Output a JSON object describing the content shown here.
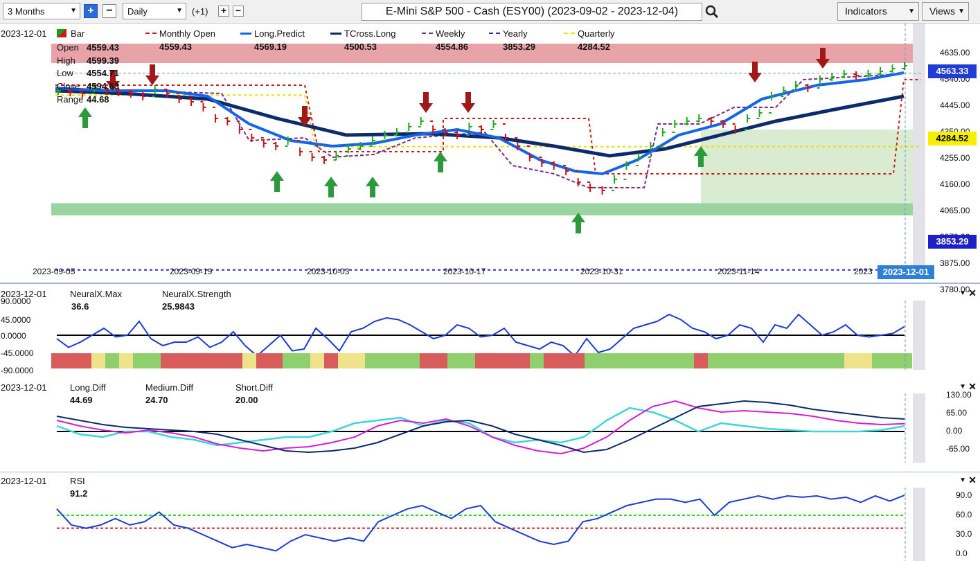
{
  "toolbar": {
    "range": "3 Months",
    "interval": "Daily",
    "offset": "(+1)",
    "title": "E-Mini S&P 500 - Cash (ESY00) (2023-09-02 - 2023-12-04)",
    "indicators": "Indicators",
    "views": "Views"
  },
  "main": {
    "date": "2023-12-01",
    "legend": [
      {
        "name": "Bar",
        "value": ""
      },
      {
        "name": "Monthly Open",
        "value": "4559.43"
      },
      {
        "name": "Long.Predict",
        "value": "4569.19"
      },
      {
        "name": "TCross.Long",
        "value": "4500.53"
      },
      {
        "name": "Weekly",
        "value": "4554.86"
      },
      {
        "name": "Yearly",
        "value": "3853.29"
      },
      {
        "name": "Quarterly",
        "value": "4284.52"
      }
    ],
    "ohlc": {
      "open_label": "Open",
      "open": "4559.43",
      "high_label": "High",
      "high": "4599.39",
      "low_label": "Low",
      "low": "4554.71",
      "close_label": "Close",
      "close": "4594.63",
      "range_label": "Range",
      "range": "44.68"
    },
    "price_axis": [
      "4635.00",
      "4540.00",
      "4445.00",
      "4350.00",
      "4255.00",
      "4160.00",
      "4065.00",
      "3970.00",
      "3875.00",
      "3780.00"
    ],
    "price_tags": {
      "current": "4563.33",
      "quarterly": "4284.52",
      "yearly": "3853.29"
    },
    "date_axis": [
      "2023-09-05",
      "2023-09-19",
      "2023-10-03",
      "2023-10-17",
      "2023-10-31",
      "2023-11-14",
      "2023"
    ],
    "date_tag": "2023-12-01"
  },
  "neural": {
    "date": "2023-12-01",
    "max_name": "NeuralX.Max",
    "max_value": "36.6",
    "strength_name": "NeuralX.Strength",
    "strength_value": "25.9843",
    "axis": [
      "90.0000",
      "45.0000",
      "0.0000",
      "-45.0000",
      "-90.0000"
    ]
  },
  "diff": {
    "date": "2023-12-01",
    "long_name": "Long.Diff",
    "long_value": "44.69",
    "medium_name": "Medium.Diff",
    "medium_value": "24.70",
    "short_name": "Short.Diff",
    "short_value": "20.00",
    "axis": [
      "130.00",
      "65.00",
      "0.00",
      "-65.00"
    ]
  },
  "rsi": {
    "date": "2023-12-01",
    "name": "RSI",
    "value": "91.2",
    "axis": [
      "90.0",
      "60.0",
      "30.0",
      "0.0"
    ]
  },
  "colors": {
    "long_predict": "#1565e8",
    "tcross": "#0d2a6b",
    "monthly": "#cc1a1a",
    "weekly": "#7a2a8a",
    "yearly": "#2a2ad0",
    "quarterly": "#e8e000",
    "medium_diff": "#d81bd8",
    "short_diff": "#3dd6d6"
  }
}
